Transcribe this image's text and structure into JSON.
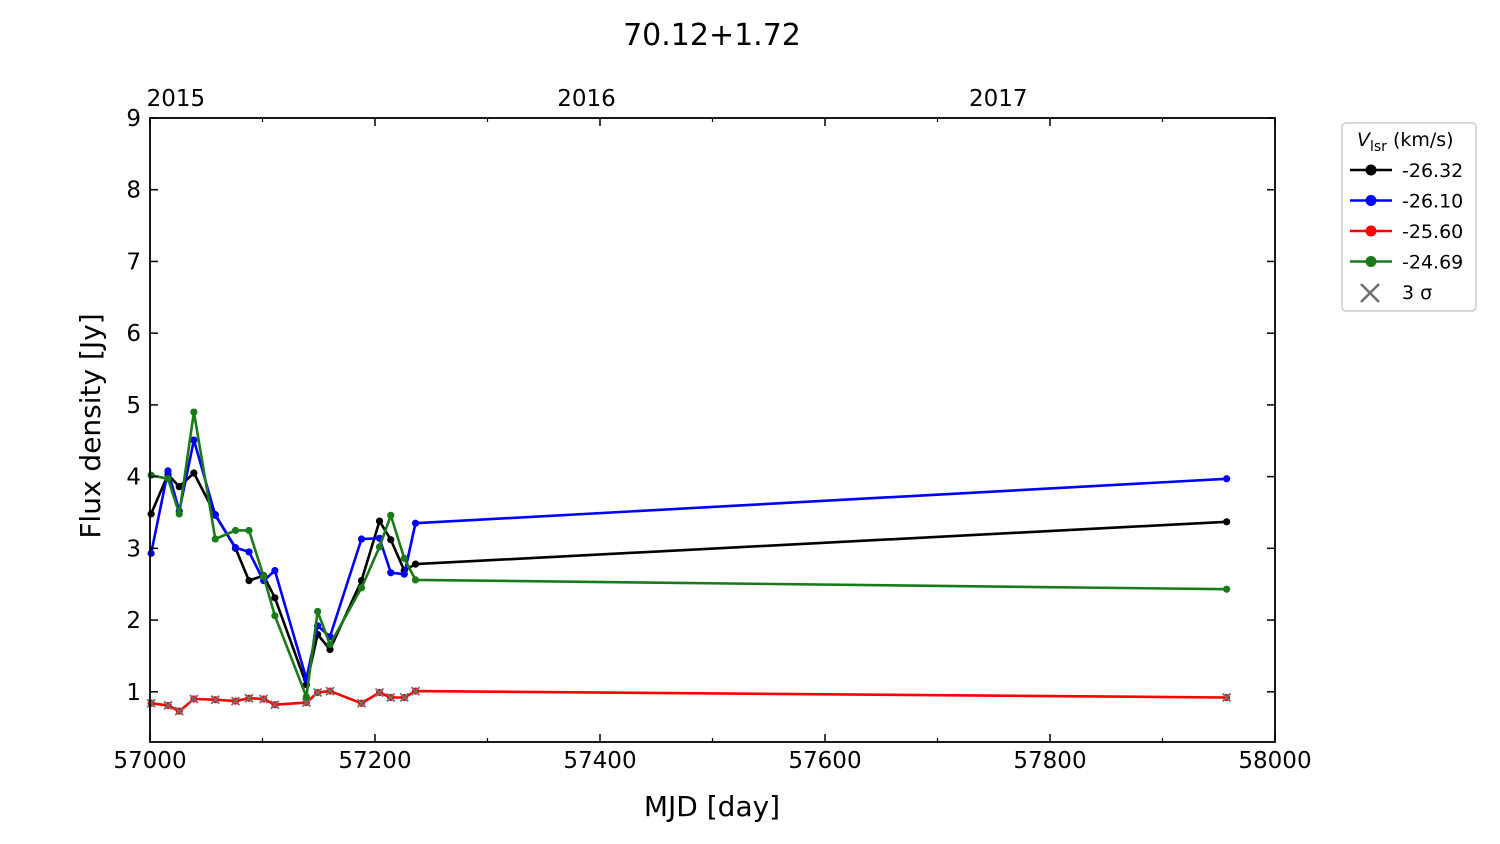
{
  "chart_data": {
    "type": "line",
    "title": "70.12+1.72",
    "xlabel": "MJD [day]",
    "ylabel": "Flux density [Jy]",
    "xlim": [
      57000,
      58000
    ],
    "ylim": [
      0.3,
      9
    ],
    "grid": false,
    "x_ticks": [
      "57000",
      "57200",
      "57400",
      "57600",
      "57800",
      "58000"
    ],
    "y_ticks": [
      "1",
      "2",
      "3",
      "4",
      "5",
      "6",
      "7",
      "8",
      "9"
    ],
    "top_axis": {
      "labels": [
        {
          "text": "2015",
          "mjd": 57023
        },
        {
          "text": "2016",
          "mjd": 57388
        },
        {
          "text": "2017",
          "mjd": 57754
        }
      ]
    },
    "legend": {
      "title_main": "V",
      "title_sub": "lsr",
      "title_unit": "(km/s)",
      "placement": "outside-right-top",
      "sigma_label": "3 σ"
    },
    "x": [
      57001,
      57016,
      57026,
      57039,
      57058,
      57076,
      57088,
      57101,
      57111,
      57139,
      57149,
      57160,
      57188,
      57204,
      57214,
      57226,
      57236,
      57957
    ],
    "series": [
      {
        "name": "-26.32",
        "color": "#000000",
        "values": [
          3.48,
          4.03,
          3.86,
          4.05,
          3.47,
          3.0,
          2.55,
          2.62,
          2.31,
          1.1,
          1.8,
          1.59,
          2.55,
          3.38,
          3.12,
          2.69,
          2.78,
          3.37
        ]
      },
      {
        "name": "-26.10",
        "color": "#0000ff",
        "values": [
          2.93,
          4.08,
          3.52,
          4.51,
          3.46,
          3.01,
          2.95,
          2.55,
          2.69,
          1.18,
          1.92,
          1.77,
          3.13,
          3.14,
          2.66,
          2.64,
          3.35,
          3.97
        ]
      },
      {
        "name": "-25.60",
        "color": "#ff0000",
        "values": [
          0.84,
          0.81,
          0.73,
          0.9,
          0.89,
          0.87,
          0.91,
          0.9,
          0.82,
          0.85,
          0.99,
          1.01,
          0.84,
          0.99,
          0.92,
          0.92,
          1.01,
          0.92
        ],
        "three_sigma": true
      },
      {
        "name": "-24.69",
        "color": "#1a7a1a",
        "values": [
          4.02,
          3.97,
          3.48,
          4.9,
          3.13,
          3.25,
          3.25,
          2.61,
          2.06,
          0.93,
          2.12,
          1.66,
          2.45,
          3.02,
          3.46,
          2.86,
          2.56,
          2.43
        ]
      }
    ]
  }
}
